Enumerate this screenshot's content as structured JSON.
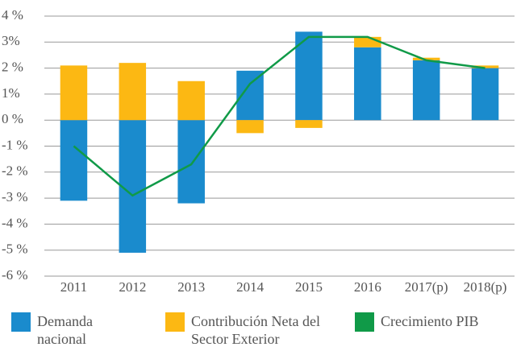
{
  "chart_data": {
    "type": "bar",
    "categories": [
      "2011",
      "2012",
      "2013",
      "2014",
      "2015",
      "2016",
      "2017(p)",
      "2018(p)"
    ],
    "series": [
      {
        "name": "Demanda nacional",
        "color": "#1a8bcd",
        "values": [
          -3.1,
          -5.1,
          -3.2,
          1.9,
          3.4,
          2.8,
          2.3,
          2.0
        ]
      },
      {
        "name": "Contribución Neta del Sector Exterior",
        "color": "#fcb813",
        "values": [
          2.1,
          2.2,
          1.5,
          -0.5,
          -0.3,
          0.4,
          0.1,
          0.1
        ]
      },
      {
        "name": "Crecimiento PIB",
        "color": "#109a48",
        "type": "line",
        "values": [
          -1.0,
          -2.9,
          -1.7,
          1.4,
          3.2,
          3.2,
          2.3,
          2.0
        ]
      }
    ],
    "ylim": [
      -6,
      4
    ],
    "yticks": [
      {
        "value": 4,
        "label": "4 %"
      },
      {
        "value": 3,
        "label": "3%"
      },
      {
        "value": 2,
        "label": "2 %"
      },
      {
        "value": 1,
        "label": "1%"
      },
      {
        "value": 0,
        "label": "0 %"
      },
      {
        "value": -1,
        "label": "-1 %"
      },
      {
        "value": -2,
        "label": "-2 %"
      },
      {
        "value": -3,
        "label": "-3 %"
      },
      {
        "value": -4,
        "label": "-4 %"
      },
      {
        "value": -5,
        "label": "-5 %"
      },
      {
        "value": -6,
        "label": "-6 %"
      }
    ],
    "grid": true,
    "legend": "bottom"
  }
}
